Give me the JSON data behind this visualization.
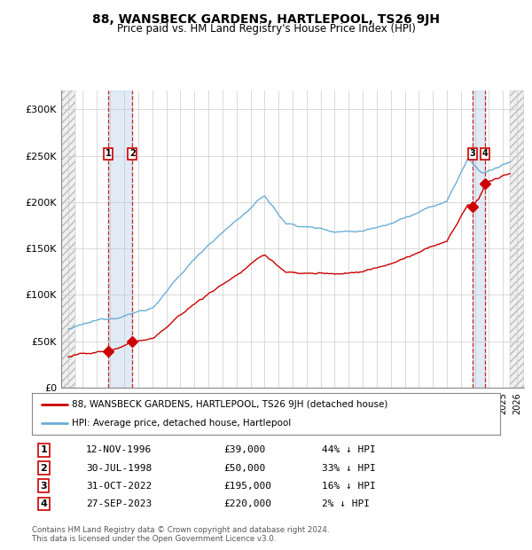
{
  "title": "88, WANSBECK GARDENS, HARTLEPOOL, TS26 9JH",
  "subtitle": "Price paid vs. HM Land Registry's House Price Index (HPI)",
  "legend_line1": "88, WANSBECK GARDENS, HARTLEPOOL, TS26 9JH (detached house)",
  "legend_line2": "HPI: Average price, detached house, Hartlepool",
  "transactions": [
    {
      "num": 1,
      "date": "12-NOV-1996",
      "date_val": 1996.87,
      "price": 39000,
      "pct": "44% ↓ HPI"
    },
    {
      "num": 2,
      "date": "30-JUL-1998",
      "date_val": 1998.58,
      "price": 50000,
      "pct": "33% ↓ HPI"
    },
    {
      "num": 3,
      "date": "31-OCT-2022",
      "date_val": 2022.83,
      "price": 195000,
      "pct": "16% ↓ HPI"
    },
    {
      "num": 4,
      "date": "27-SEP-2023",
      "date_val": 2023.74,
      "price": 220000,
      "pct": "2% ↓ HPI"
    }
  ],
  "hpi_color": "#6baed6",
  "price_color": "#cc0000",
  "marker_color": "#cc0000",
  "background_color": "#ffffff",
  "grid_color": "#cccccc",
  "ylim": [
    0,
    320000
  ],
  "xlim_start": 1993.5,
  "xlim_end": 2026.5,
  "hatch_left_end": 1994.5,
  "hatch_right_start": 2025.5,
  "yticks": [
    0,
    50000,
    100000,
    150000,
    200000,
    250000,
    300000
  ],
  "ytick_labels": [
    "£0",
    "£50K",
    "£100K",
    "£150K",
    "£200K",
    "£250K",
    "£300K"
  ],
  "footnote1": "Contains HM Land Registry data © Crown copyright and database right 2024.",
  "footnote2": "This data is licensed under the Open Government Licence v3.0."
}
